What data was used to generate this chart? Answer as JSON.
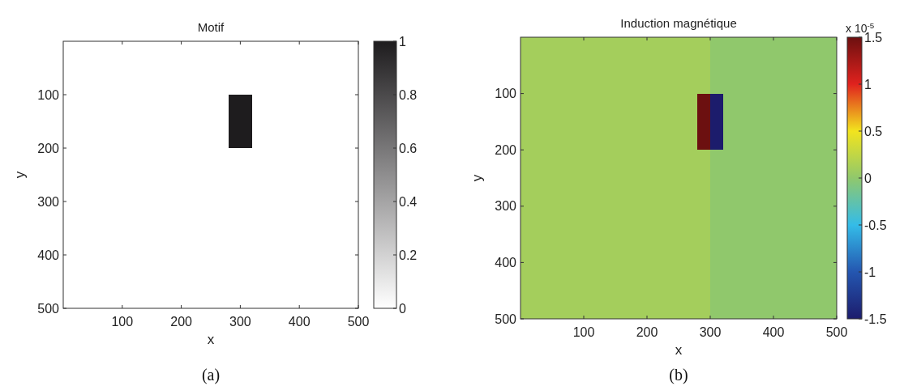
{
  "chart_data": [
    {
      "type": "heatmap",
      "title": "Motif",
      "xlabel": "x",
      "ylabel": "y",
      "annotations": [
        "(a)"
      ],
      "xlim": [
        0,
        500
      ],
      "ylim": [
        500,
        0
      ],
      "xticks": [
        100,
        200,
        300,
        400,
        500
      ],
      "yticks": [
        100,
        200,
        300,
        400,
        500
      ],
      "clim": [
        0,
        1
      ],
      "cticks": [
        0,
        0.2,
        0.4,
        0.6,
        0.8,
        1
      ],
      "colors": [
        "#ffffff",
        "#1e1c1e"
      ],
      "cells": [
        [
          0,
          0,
          0,
          0,
          0,
          0,
          0,
          0,
          0,
          0,
          0,
          0,
          0,
          0,
          0,
          0,
          0,
          0,
          0,
          0,
          0,
          0,
          0,
          0,
          0
        ],
        [
          0,
          0,
          0,
          0,
          0,
          0,
          0,
          0,
          0,
          0,
          0,
          0,
          0,
          0,
          0,
          0,
          0,
          0,
          0,
          0,
          0,
          0,
          0,
          0,
          0
        ],
        [
          0,
          0,
          0,
          0,
          0,
          0,
          0,
          0,
          0,
          0,
          0,
          0,
          0,
          0,
          0,
          0,
          0,
          0,
          0,
          0,
          0,
          0,
          0,
          0,
          0
        ],
        [
          0,
          0,
          0,
          0,
          0,
          0,
          0,
          0,
          0,
          0,
          0,
          0,
          0,
          0,
          0,
          0,
          0,
          0,
          0,
          0,
          0,
          0,
          0,
          0,
          0
        ],
        [
          0,
          0,
          0,
          0,
          0,
          0,
          0,
          0,
          0,
          0,
          0,
          0,
          0,
          0,
          0,
          0,
          0,
          0,
          0,
          0,
          0,
          0,
          0,
          0,
          0
        ],
        [
          0,
          0,
          0,
          0,
          0,
          0,
          0,
          0,
          0,
          0,
          0,
          0,
          0,
          0,
          1,
          1,
          0,
          0,
          0,
          0,
          0,
          0,
          0,
          0,
          0
        ],
        [
          0,
          0,
          0,
          0,
          0,
          0,
          0,
          0,
          0,
          0,
          0,
          0,
          0,
          0,
          1,
          1,
          0,
          0,
          0,
          0,
          0,
          0,
          0,
          0,
          0
        ],
        [
          0,
          0,
          0,
          0,
          0,
          0,
          0,
          0,
          0,
          0,
          0,
          0,
          0,
          0,
          1,
          1,
          0,
          0,
          0,
          0,
          0,
          0,
          0,
          0,
          0
        ],
        [
          0,
          0,
          0,
          0,
          0,
          0,
          0,
          0,
          0,
          0,
          0,
          0,
          0,
          0,
          1,
          1,
          0,
          0,
          0,
          0,
          0,
          0,
          0,
          0,
          0
        ],
        [
          0,
          0,
          0,
          0,
          0,
          0,
          0,
          0,
          0,
          0,
          0,
          0,
          0,
          0,
          1,
          1,
          0,
          0,
          0,
          0,
          0,
          0,
          0,
          0,
          0
        ],
        [
          0,
          0,
          0,
          0,
          0,
          0,
          0,
          0,
          0,
          0,
          0,
          0,
          0,
          0,
          0,
          0,
          0,
          0,
          0,
          0,
          0,
          0,
          0,
          0,
          0
        ],
        [
          0,
          0,
          0,
          0,
          0,
          0,
          0,
          0,
          0,
          0,
          0,
          0,
          0,
          0,
          0,
          0,
          0,
          0,
          0,
          0,
          0,
          0,
          0,
          0,
          0
        ],
        [
          0,
          0,
          0,
          0,
          0,
          0,
          0,
          0,
          0,
          0,
          0,
          0,
          0,
          0,
          0,
          0,
          0,
          0,
          0,
          0,
          0,
          0,
          0,
          0,
          0
        ],
        [
          0,
          0,
          0,
          0,
          0,
          0,
          0,
          0,
          0,
          0,
          0,
          0,
          0,
          0,
          0,
          0,
          0,
          0,
          0,
          0,
          0,
          0,
          0,
          0,
          0
        ],
        [
          0,
          0,
          0,
          0,
          0,
          0,
          0,
          0,
          0,
          0,
          0,
          0,
          0,
          0,
          0,
          0,
          0,
          0,
          0,
          0,
          0,
          0,
          0,
          0,
          0
        ],
        [
          0,
          0,
          0,
          0,
          0,
          0,
          0,
          0,
          0,
          0,
          0,
          0,
          0,
          0,
          0,
          0,
          0,
          0,
          0,
          0,
          0,
          0,
          0,
          0,
          0
        ],
        [
          0,
          0,
          0,
          0,
          0,
          0,
          0,
          0,
          0,
          0,
          0,
          0,
          0,
          0,
          0,
          0,
          0,
          0,
          0,
          0,
          0,
          0,
          0,
          0,
          0
        ],
        [
          0,
          0,
          0,
          0,
          0,
          0,
          0,
          0,
          0,
          0,
          0,
          0,
          0,
          0,
          0,
          0,
          0,
          0,
          0,
          0,
          0,
          0,
          0,
          0,
          0
        ],
        [
          0,
          0,
          0,
          0,
          0,
          0,
          0,
          0,
          0,
          0,
          0,
          0,
          0,
          0,
          0,
          0,
          0,
          0,
          0,
          0,
          0,
          0,
          0,
          0,
          0
        ],
        [
          0,
          0,
          0,
          0,
          0,
          0,
          0,
          0,
          0,
          0,
          0,
          0,
          0,
          0,
          0,
          0,
          0,
          0,
          0,
          0,
          0,
          0,
          0,
          0,
          0
        ],
        [
          0,
          0,
          0,
          0,
          0,
          0,
          0,
          0,
          0,
          0,
          0,
          0,
          0,
          0,
          0,
          0,
          0,
          0,
          0,
          0,
          0,
          0,
          0,
          0,
          0
        ],
        [
          0,
          0,
          0,
          0,
          0,
          0,
          0,
          0,
          0,
          0,
          0,
          0,
          0,
          0,
          0,
          0,
          0,
          0,
          0,
          0,
          0,
          0,
          0,
          0,
          0
        ],
        [
          0,
          0,
          0,
          0,
          0,
          0,
          0,
          0,
          0,
          0,
          0,
          0,
          0,
          0,
          0,
          0,
          0,
          0,
          0,
          0,
          0,
          0,
          0,
          0,
          0
        ],
        [
          0,
          0,
          0,
          0,
          0,
          0,
          0,
          0,
          0,
          0,
          0,
          0,
          0,
          0,
          0,
          0,
          0,
          0,
          0,
          0,
          0,
          0,
          0,
          0,
          0
        ],
        [
          0,
          0,
          0,
          0,
          0,
          0,
          0,
          0,
          0,
          0,
          0,
          0,
          0,
          0,
          0,
          0,
          0,
          0,
          0,
          0,
          0,
          0,
          0,
          0,
          0
        ]
      ]
    },
    {
      "type": "heatmap",
      "title": "Induction magnétique",
      "xlabel": "x",
      "ylabel": "y",
      "clabel": "x 10$^{-5}$",
      "annotations": [
        "(b)"
      ],
      "xlim": [
        0,
        500
      ],
      "ylim": [
        500,
        0
      ],
      "xticks": [
        100,
        200,
        300,
        400,
        500
      ],
      "yticks": [
        100,
        200,
        300,
        400,
        500
      ],
      "clim": [
        -1.5,
        1.5
      ],
      "cticks": [
        -1.5,
        -1,
        -0.5,
        0,
        0.5,
        1,
        1.5
      ],
      "colors": [
        "#1c1c6c",
        "#2456b0",
        "#34bce8",
        "#90c86c",
        "#f2e41e",
        "#e0221e",
        "#6c1010"
      ],
      "cells": [
        [
          0.1,
          0.1,
          0.1,
          0.1,
          0.1,
          0.1,
          0.1,
          0.1,
          0.1,
          0.1,
          0.1,
          0.1,
          0.1,
          0.1,
          0.1,
          0,
          0,
          0,
          0,
          0,
          0,
          0,
          0,
          0,
          0
        ],
        [
          0.1,
          0.1,
          0.1,
          0.1,
          0.1,
          0.1,
          0.1,
          0.1,
          0.1,
          0.1,
          0.1,
          0.1,
          0.1,
          0.1,
          0.1,
          0,
          0,
          0,
          0,
          0,
          0,
          0,
          0,
          0,
          0
        ],
        [
          0.1,
          0.1,
          0.1,
          0.1,
          0.1,
          0.1,
          0.1,
          0.1,
          0.1,
          0.1,
          0.1,
          0.1,
          0.1,
          0.1,
          0.1,
          0,
          0,
          0,
          0,
          0,
          0,
          0,
          0,
          0,
          0
        ],
        [
          0.1,
          0.1,
          0.1,
          0.1,
          0.1,
          0.1,
          0.1,
          0.1,
          0.1,
          0.1,
          0.1,
          0.1,
          0.1,
          0.1,
          0.1,
          0,
          0,
          0,
          0,
          0,
          0,
          0,
          0,
          0,
          0
        ],
        [
          0.1,
          0.1,
          0.1,
          0.1,
          0.1,
          0.1,
          0.1,
          0.1,
          0.1,
          0.1,
          0.1,
          0.1,
          0.1,
          0.1,
          0.1,
          0,
          0,
          0,
          0,
          0,
          0,
          0,
          0,
          0,
          0
        ],
        [
          0.1,
          0.1,
          0.1,
          0.1,
          0.1,
          0.1,
          0.1,
          0.1,
          0.1,
          0.1,
          0.1,
          0.1,
          0.1,
          0.1,
          1.5,
          -1.5,
          0,
          0,
          0,
          0,
          0,
          0,
          0,
          0,
          0
        ],
        [
          0.1,
          0.1,
          0.1,
          0.1,
          0.1,
          0.1,
          0.1,
          0.1,
          0.1,
          0.1,
          0.1,
          0.1,
          0.1,
          0.1,
          1.5,
          -1.5,
          0,
          0,
          0,
          0,
          0,
          0,
          0,
          0,
          0
        ],
        [
          0.1,
          0.1,
          0.1,
          0.1,
          0.1,
          0.1,
          0.1,
          0.1,
          0.1,
          0.1,
          0.1,
          0.1,
          0.1,
          0.1,
          1.5,
          -1.5,
          0,
          0,
          0,
          0,
          0,
          0,
          0,
          0,
          0
        ],
        [
          0.1,
          0.1,
          0.1,
          0.1,
          0.1,
          0.1,
          0.1,
          0.1,
          0.1,
          0.1,
          0.1,
          0.1,
          0.1,
          0.1,
          1.5,
          -1.5,
          0,
          0,
          0,
          0,
          0,
          0,
          0,
          0,
          0
        ],
        [
          0.1,
          0.1,
          0.1,
          0.1,
          0.1,
          0.1,
          0.1,
          0.1,
          0.1,
          0.1,
          0.1,
          0.1,
          0.1,
          0.1,
          1.5,
          -1.5,
          0,
          0,
          0,
          0,
          0,
          0,
          0,
          0,
          0
        ],
        [
          0.1,
          0.1,
          0.1,
          0.1,
          0.1,
          0.1,
          0.1,
          0.1,
          0.1,
          0.1,
          0.1,
          0.1,
          0.1,
          0.1,
          0.1,
          0,
          0,
          0,
          0,
          0,
          0,
          0,
          0,
          0,
          0
        ],
        [
          0.1,
          0.1,
          0.1,
          0.1,
          0.1,
          0.1,
          0.1,
          0.1,
          0.1,
          0.1,
          0.1,
          0.1,
          0.1,
          0.1,
          0.1,
          0,
          0,
          0,
          0,
          0,
          0,
          0,
          0,
          0,
          0
        ],
        [
          0.1,
          0.1,
          0.1,
          0.1,
          0.1,
          0.1,
          0.1,
          0.1,
          0.1,
          0.1,
          0.1,
          0.1,
          0.1,
          0.1,
          0.1,
          0,
          0,
          0,
          0,
          0,
          0,
          0,
          0,
          0,
          0
        ],
        [
          0.1,
          0.1,
          0.1,
          0.1,
          0.1,
          0.1,
          0.1,
          0.1,
          0.1,
          0.1,
          0.1,
          0.1,
          0.1,
          0.1,
          0.1,
          0,
          0,
          0,
          0,
          0,
          0,
          0,
          0,
          0,
          0
        ],
        [
          0.1,
          0.1,
          0.1,
          0.1,
          0.1,
          0.1,
          0.1,
          0.1,
          0.1,
          0.1,
          0.1,
          0.1,
          0.1,
          0.1,
          0.1,
          0,
          0,
          0,
          0,
          0,
          0,
          0,
          0,
          0,
          0
        ],
        [
          0.1,
          0.1,
          0.1,
          0.1,
          0.1,
          0.1,
          0.1,
          0.1,
          0.1,
          0.1,
          0.1,
          0.1,
          0.1,
          0.1,
          0.1,
          0,
          0,
          0,
          0,
          0,
          0,
          0,
          0,
          0,
          0
        ],
        [
          0.1,
          0.1,
          0.1,
          0.1,
          0.1,
          0.1,
          0.1,
          0.1,
          0.1,
          0.1,
          0.1,
          0.1,
          0.1,
          0.1,
          0.1,
          0,
          0,
          0,
          0,
          0,
          0,
          0,
          0,
          0,
          0
        ],
        [
          0.1,
          0.1,
          0.1,
          0.1,
          0.1,
          0.1,
          0.1,
          0.1,
          0.1,
          0.1,
          0.1,
          0.1,
          0.1,
          0.1,
          0.1,
          0,
          0,
          0,
          0,
          0,
          0,
          0,
          0,
          0,
          0
        ],
        [
          0.1,
          0.1,
          0.1,
          0.1,
          0.1,
          0.1,
          0.1,
          0.1,
          0.1,
          0.1,
          0.1,
          0.1,
          0.1,
          0.1,
          0.1,
          0,
          0,
          0,
          0,
          0,
          0,
          0,
          0,
          0,
          0
        ],
        [
          0.1,
          0.1,
          0.1,
          0.1,
          0.1,
          0.1,
          0.1,
          0.1,
          0.1,
          0.1,
          0.1,
          0.1,
          0.1,
          0.1,
          0.1,
          0,
          0,
          0,
          0,
          0,
          0,
          0,
          0,
          0,
          0
        ],
        [
          0.1,
          0.1,
          0.1,
          0.1,
          0.1,
          0.1,
          0.1,
          0.1,
          0.1,
          0.1,
          0.1,
          0.1,
          0.1,
          0.1,
          0.1,
          0,
          0,
          0,
          0,
          0,
          0,
          0,
          0,
          0,
          0
        ],
        [
          0.1,
          0.1,
          0.1,
          0.1,
          0.1,
          0.1,
          0.1,
          0.1,
          0.1,
          0.1,
          0.1,
          0.1,
          0.1,
          0.1,
          0.1,
          0,
          0,
          0,
          0,
          0,
          0,
          0,
          0,
          0,
          0
        ],
        [
          0.1,
          0.1,
          0.1,
          0.1,
          0.1,
          0.1,
          0.1,
          0.1,
          0.1,
          0.1,
          0.1,
          0.1,
          0.1,
          0.1,
          0.1,
          0,
          0,
          0,
          0,
          0,
          0,
          0,
          0,
          0,
          0
        ],
        [
          0.1,
          0.1,
          0.1,
          0.1,
          0.1,
          0.1,
          0.1,
          0.1,
          0.1,
          0.1,
          0.1,
          0.1,
          0.1,
          0.1,
          0.1,
          0,
          0,
          0,
          0,
          0,
          0,
          0,
          0,
          0,
          0
        ],
        [
          0.1,
          0.1,
          0.1,
          0.1,
          0.1,
          0.1,
          0.1,
          0.1,
          0.1,
          0.1,
          0.1,
          0.1,
          0.1,
          0.1,
          0.1,
          0,
          0,
          0,
          0,
          0,
          0,
          0,
          0,
          0,
          0
        ]
      ]
    }
  ]
}
